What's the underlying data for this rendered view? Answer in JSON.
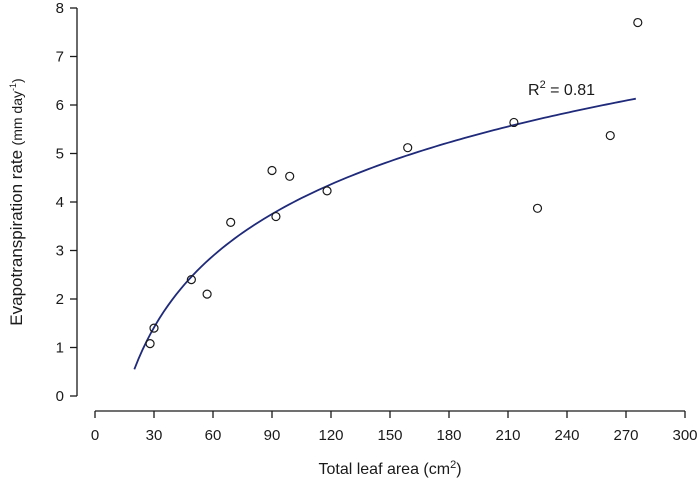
{
  "chart_data": {
    "type": "scatter",
    "title": "",
    "xlabel": {
      "main": "Total leaf area (cm",
      "sup": "2",
      "tail": ")"
    },
    "ylabel": {
      "main": "Evapotranspiration rate",
      "unit_main": "(mm day",
      "unit_sup": "-1",
      "unit_tail": ")"
    },
    "xlim": [
      0,
      300
    ],
    "ylim": [
      0,
      8
    ],
    "xticks": [
      0,
      30,
      60,
      90,
      120,
      150,
      180,
      210,
      240,
      270,
      300
    ],
    "yticks": [
      0,
      1,
      2,
      3,
      4,
      5,
      6,
      7,
      8
    ],
    "grid": false,
    "points": [
      {
        "x": 28,
        "y": 1.08
      },
      {
        "x": 30,
        "y": 1.4
      },
      {
        "x": 49,
        "y": 2.4
      },
      {
        "x": 57,
        "y": 2.1
      },
      {
        "x": 69,
        "y": 3.58
      },
      {
        "x": 90,
        "y": 4.65
      },
      {
        "x": 92,
        "y": 3.7
      },
      {
        "x": 99,
        "y": 4.53
      },
      {
        "x": 118,
        "y": 4.23
      },
      {
        "x": 159,
        "y": 5.12
      },
      {
        "x": 213,
        "y": 5.64
      },
      {
        "x": 225,
        "y": 3.87
      },
      {
        "x": 262,
        "y": 5.37
      },
      {
        "x": 276,
        "y": 7.7
      }
    ],
    "fit": {
      "type": "logarithmic",
      "x_range": [
        20,
        275
      ],
      "y_at_start": 0.55,
      "y_at_end": 6.13,
      "color": "#1f2a7a"
    },
    "annotation": {
      "base": "R",
      "sup": "2",
      "text": " = 0.81"
    }
  }
}
